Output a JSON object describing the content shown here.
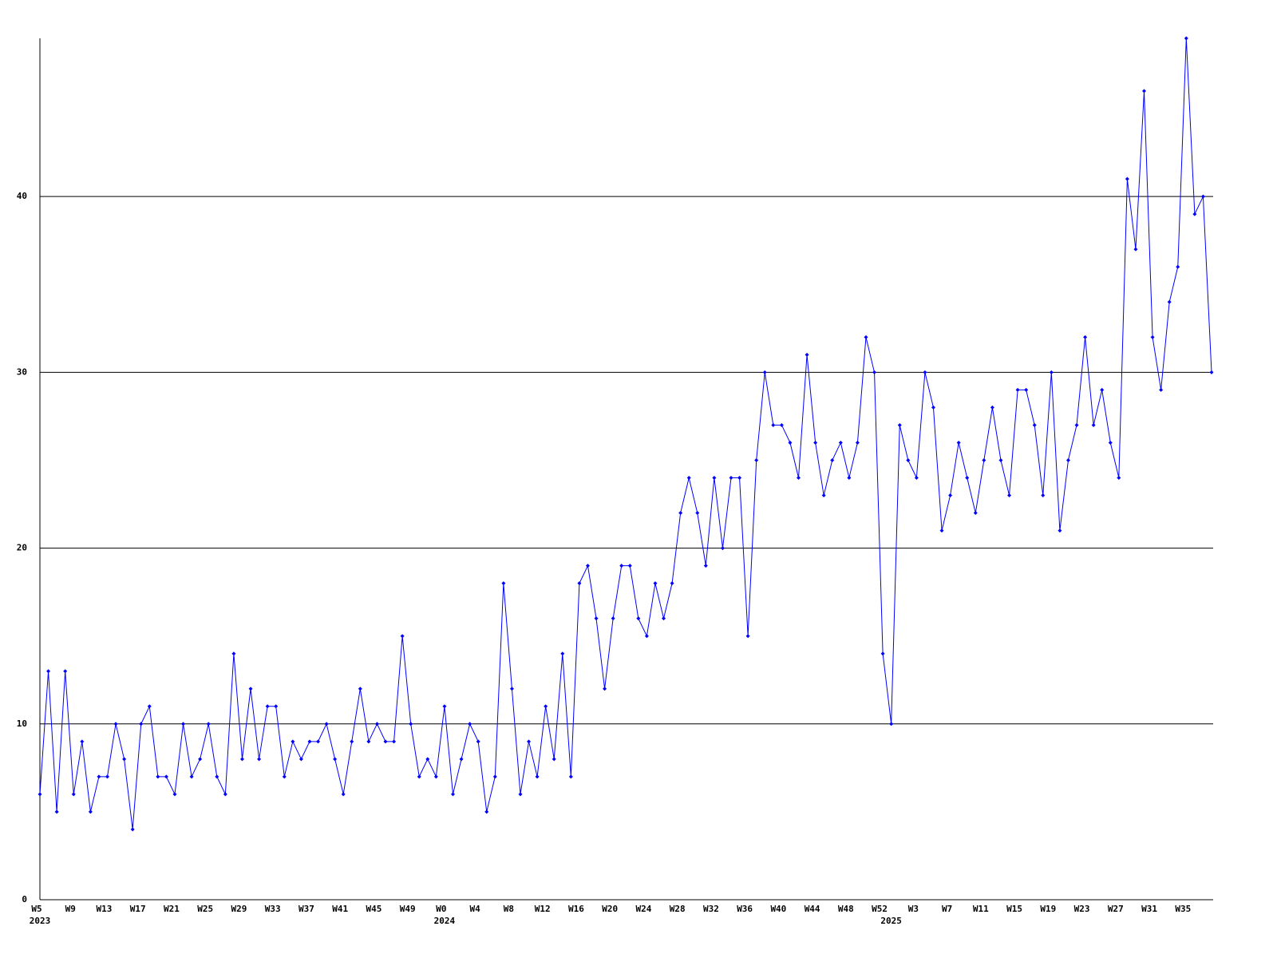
{
  "chart_data": {
    "type": "line",
    "categories": [
      "W5",
      null,
      null,
      null,
      "W9",
      null,
      null,
      null,
      "W13",
      null,
      null,
      null,
      "W17",
      null,
      null,
      null,
      "W21",
      null,
      null,
      null,
      "W25",
      null,
      null,
      null,
      "W29",
      null,
      null,
      null,
      "W33",
      null,
      null,
      null,
      "W37",
      null,
      null,
      null,
      "W41",
      null,
      null,
      null,
      "W45",
      null,
      null,
      null,
      "W49",
      null,
      null,
      null,
      "W0",
      null,
      null,
      null,
      "W4",
      null,
      null,
      null,
      "W8",
      null,
      null,
      null,
      "W12",
      null,
      null,
      null,
      "W16",
      null,
      null,
      null,
      "W20",
      null,
      null,
      null,
      "W24",
      null,
      null,
      null,
      "W28",
      null,
      null,
      null,
      "W32",
      null,
      null,
      null,
      "W36",
      null,
      null,
      null,
      "W40",
      null,
      null,
      null,
      "W44",
      null,
      null,
      null,
      "W48",
      null,
      null,
      null,
      "W52",
      null,
      null,
      null,
      "W3",
      null,
      null,
      null,
      "W7",
      null,
      null,
      null,
      "W11",
      null,
      null,
      null,
      "W15",
      null,
      null,
      null,
      "W19",
      null,
      null,
      null,
      "W23",
      null,
      null,
      null,
      "W27",
      null,
      null,
      null,
      "W31",
      null,
      null,
      null,
      "W35",
      null,
      null,
      null
    ],
    "year_labels": [
      {
        "at": 0,
        "label": "2023"
      },
      {
        "at": 48,
        "label": "2024"
      },
      {
        "at": 101,
        "label": "2025"
      }
    ],
    "series": [
      {
        "color": "#0000ff",
        "values": [
          6,
          13,
          5,
          13,
          6,
          9,
          5,
          7,
          7,
          10,
          8,
          4,
          10,
          11,
          7,
          7,
          6,
          10,
          7,
          8,
          10,
          7,
          6,
          14,
          8,
          12,
          8,
          11,
          11,
          7,
          9,
          8,
          9,
          9,
          10,
          8,
          6,
          9,
          12,
          9,
          10,
          9,
          9,
          15,
          10,
          7,
          8,
          7,
          11,
          6,
          8,
          10,
          9,
          5,
          7,
          18,
          12,
          6,
          9,
          7,
          11,
          8,
          14,
          7,
          18,
          19,
          16,
          12,
          16,
          19,
          19,
          16,
          15,
          18,
          16,
          18,
          22,
          24,
          22,
          19,
          24,
          20,
          24,
          24,
          15,
          25,
          30,
          27,
          27,
          26,
          24,
          31,
          26,
          23,
          25,
          26,
          24,
          26,
          32,
          30,
          14,
          10,
          27,
          25,
          24,
          30,
          28,
          21,
          23,
          26,
          24,
          22,
          25,
          28,
          25,
          23,
          29,
          29,
          27,
          23,
          30,
          21,
          25,
          27,
          32,
          27,
          29,
          26,
          24,
          41,
          37,
          46,
          32,
          29,
          34,
          36,
          49,
          39,
          40,
          30
        ]
      }
    ],
    "ylim": [
      0,
      49
    ],
    "yticks": [
      0,
      10,
      20,
      30,
      40
    ],
    "grid": true
  }
}
